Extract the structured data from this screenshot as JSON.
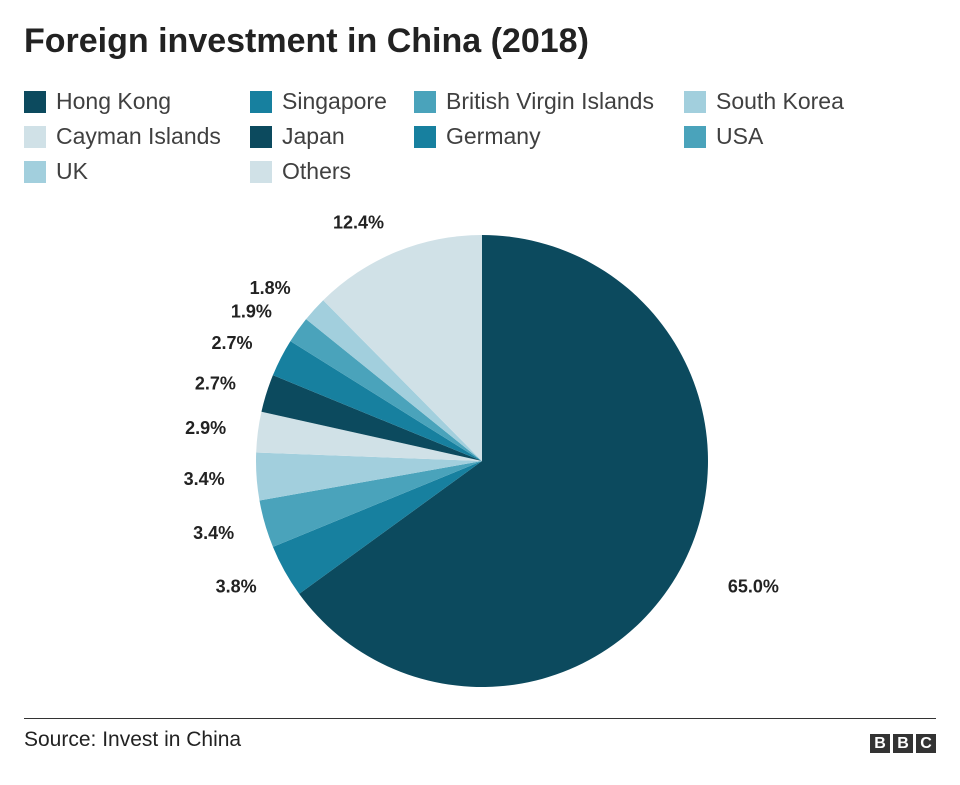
{
  "title": "Foreign investment in China (2018)",
  "source": "Source: Invest in China",
  "logo": [
    "B",
    "B",
    "C"
  ],
  "chart_data": {
    "type": "pie",
    "title": "Foreign investment in China (2018)",
    "unit": "%",
    "legend_position": "top",
    "slices": [
      {
        "label": "Hong Kong",
        "value": 65.0,
        "display": "65.0%",
        "color": "#0c4a5e"
      },
      {
        "label": "Singapore",
        "value": 3.8,
        "display": "3.8%",
        "color": "#17809f"
      },
      {
        "label": "British Virgin Islands",
        "value": 3.4,
        "display": "3.4%",
        "color": "#4aa3bb"
      },
      {
        "label": "South Korea",
        "value": 3.4,
        "display": "3.4%",
        "color": "#a2cfdd"
      },
      {
        "label": "Cayman Islands",
        "value": 2.9,
        "display": "2.9%",
        "color": "#d0e1e7"
      },
      {
        "label": "Japan",
        "value": 2.7,
        "display": "2.7%",
        "color": "#0c4a5e"
      },
      {
        "label": "Germany",
        "value": 2.7,
        "display": "2.7%",
        "color": "#17809f"
      },
      {
        "label": "USA",
        "value": 1.9,
        "display": "1.9%",
        "color": "#4aa3bb"
      },
      {
        "label": "UK",
        "value": 1.8,
        "display": "1.8%",
        "color": "#a2cfdd"
      },
      {
        "label": "Others",
        "value": 12.4,
        "display": "12.4%",
        "color": "#d0e1e7"
      }
    ]
  }
}
